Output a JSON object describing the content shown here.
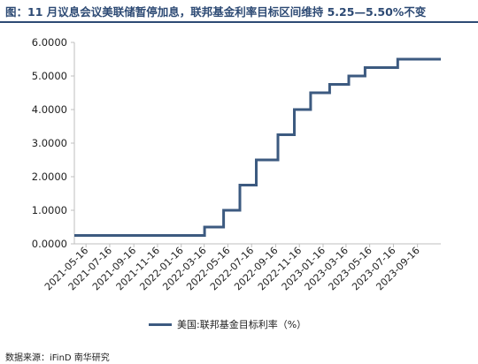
{
  "title": "图：11 月议息会议美联储暂停加息，联邦基金利率目标区间维持 5.25—5.50%不变",
  "source": "数据来源：iFinD 南华研究",
  "colors": {
    "title": "#2d4a74",
    "series": "#3c5a80",
    "axis": "#bfbfbf"
  },
  "chart_data": {
    "type": "line",
    "step": true,
    "ylim": [
      0,
      6
    ],
    "yticks": [
      "0.0000",
      "1.0000",
      "2.0000",
      "3.0000",
      "4.0000",
      "5.0000",
      "6.0000"
    ],
    "ytick_values": [
      0,
      1,
      2,
      3,
      4,
      5,
      6
    ],
    "xlim": [
      "2021-04-16",
      "2023-11-15"
    ],
    "xticks": [
      "2021-05-16",
      "2021-07-16",
      "2021-09-16",
      "2021-11-16",
      "2022-01-16",
      "2022-03-16",
      "2022-05-16",
      "2022-07-16",
      "2022-09-16",
      "2022-11-16",
      "2023-01-16",
      "2023-03-16",
      "2023-05-16",
      "2023-07-16",
      "2023-09-16"
    ],
    "legend_position": "bottom",
    "series": [
      {
        "name": "美国:联邦基金目标利率（%）",
        "points": [
          {
            "x": "2021-04-16",
            "y": 0.25
          },
          {
            "x": "2022-03-17",
            "y": 0.5
          },
          {
            "x": "2022-05-05",
            "y": 1.0
          },
          {
            "x": "2022-06-16",
            "y": 1.75
          },
          {
            "x": "2022-07-28",
            "y": 2.5
          },
          {
            "x": "2022-09-22",
            "y": 3.25
          },
          {
            "x": "2022-11-03",
            "y": 4.0
          },
          {
            "x": "2022-12-15",
            "y": 4.5
          },
          {
            "x": "2023-02-02",
            "y": 4.75
          },
          {
            "x": "2023-03-23",
            "y": 5.0
          },
          {
            "x": "2023-05-04",
            "y": 5.25
          },
          {
            "x": "2023-07-27",
            "y": 5.5
          },
          {
            "x": "2023-11-15",
            "y": 5.5
          }
        ]
      }
    ]
  }
}
